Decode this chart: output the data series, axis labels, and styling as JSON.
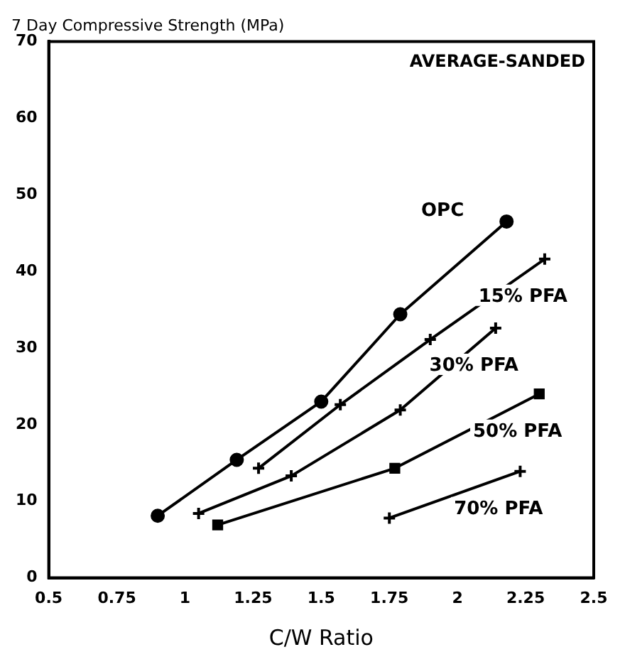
{
  "chart_data": {
    "type": "line",
    "ylabel": "7 Day Compressive Strength (MPa)",
    "xlabel": "C/W Ratio",
    "annotations": [
      "AVERAGE-SANDED"
    ],
    "xlim": [
      0.5,
      2.5
    ],
    "xticks": [
      0.5,
      0.75,
      1,
      1.25,
      1.5,
      1.75,
      2,
      2.25,
      2.5
    ],
    "ylim": [
      0,
      70
    ],
    "yticks": [
      0,
      10,
      20,
      30,
      40,
      50,
      60,
      70
    ],
    "grid": false,
    "legend": false,
    "series": [
      {
        "name": "OPC",
        "color": "#000000",
        "marker": "circle",
        "x": [
          0.9,
          1.19,
          1.5,
          1.79,
          2.18
        ],
        "values": [
          8.1,
          15.4,
          23,
          34.4,
          46.5
        ]
      },
      {
        "name": "15% PFA",
        "color": "#000000",
        "marker": "cross",
        "x": [
          1.27,
          1.57,
          1.9,
          2.32
        ],
        "values": [
          14.3,
          22.6,
          31.1,
          41.6
        ]
      },
      {
        "name": "30% PFA",
        "color": "#000000",
        "marker": "cross",
        "x": [
          1.05,
          1.39,
          1.79,
          2.14
        ],
        "values": [
          8.4,
          13.3,
          21.9,
          32.6
        ]
      },
      {
        "name": "50% PFA",
        "color": "#000000",
        "marker": "square",
        "x": [
          1.12,
          1.77,
          2.3
        ],
        "values": [
          6.9,
          14.3,
          24
        ]
      },
      {
        "name": "70% PFA",
        "color": "#000000",
        "marker": "cross",
        "x": [
          1.75,
          2.23
        ],
        "values": [
          7.8,
          13.9
        ]
      }
    ]
  }
}
